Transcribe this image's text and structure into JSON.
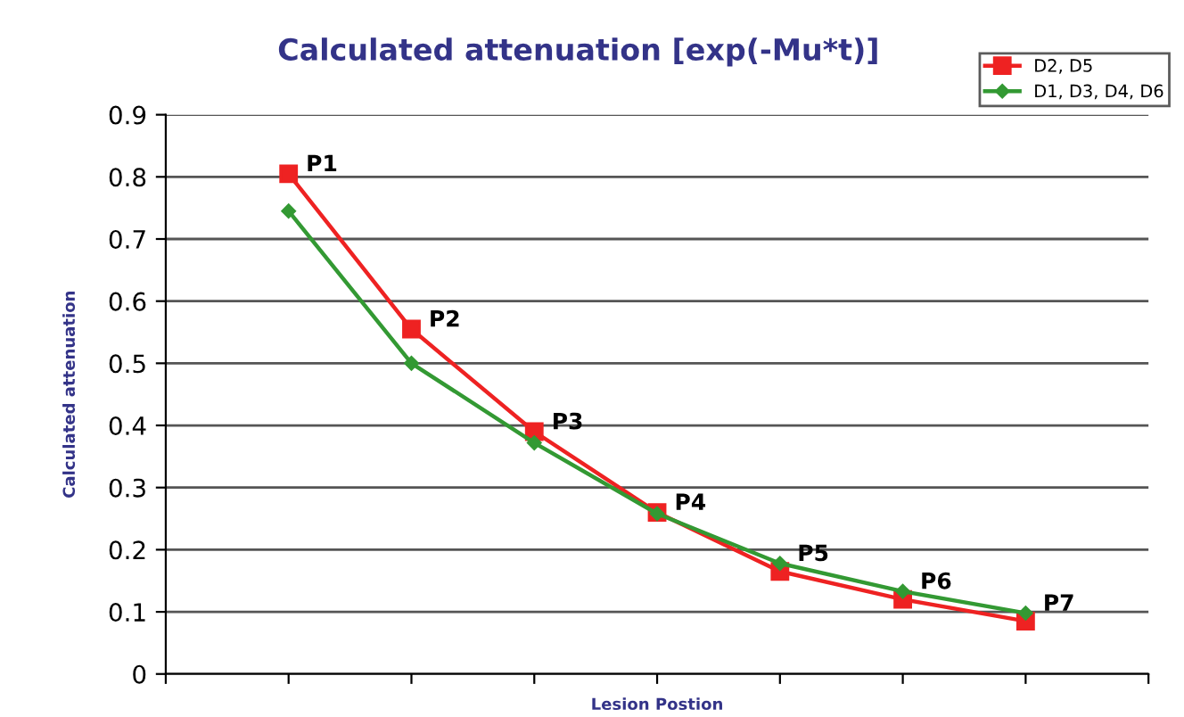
{
  "chart_data": {
    "type": "line",
    "title": "Calculated attenuation [exp(-Mu*t)]",
    "xlabel": "Lesion Postion",
    "ylabel": "Calculated attenuation",
    "categories": [
      null,
      null,
      null,
      null,
      null,
      null,
      null
    ],
    "series": [
      {
        "name": "D2, D5",
        "color": "#ee2222",
        "marker": "square",
        "values": [
          0.805,
          0.555,
          0.39,
          0.26,
          0.165,
          0.12,
          0.085
        ]
      },
      {
        "name": "D1, D3, D4, D6",
        "color": "#339933",
        "marker": "diamond",
        "values": [
          0.745,
          0.5,
          0.372,
          0.258,
          0.178,
          0.133,
          0.098
        ]
      }
    ],
    "annotations": [
      "P1",
      "P2",
      "P3",
      "P4",
      "P5",
      "P6",
      "P7"
    ],
    "ylim": [
      0,
      0.9
    ],
    "yticks": [
      0,
      0.1,
      0.2,
      0.3,
      0.4,
      0.5,
      0.6,
      0.7,
      0.8,
      0.9
    ],
    "grid": "y",
    "legend": "top right"
  }
}
